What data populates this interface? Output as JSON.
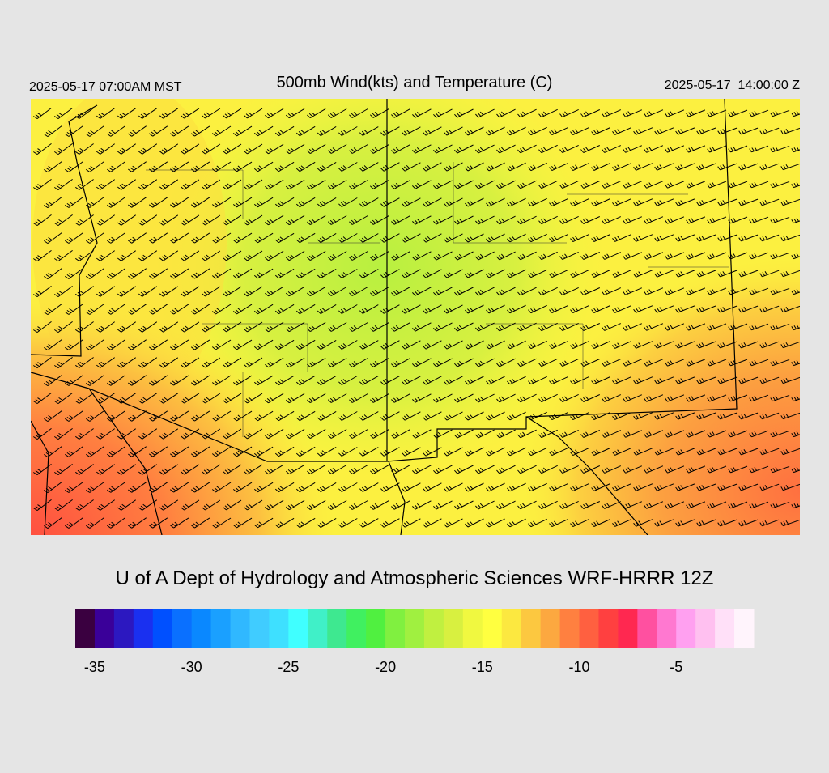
{
  "header": {
    "valid_local": "2025-05-17 07:00AM MST",
    "title": "500mb Wind(kts) and Temperature (C)",
    "valid_utc": "2025-05-17_14:00:00 Z"
  },
  "footer": "U of A Dept of Hydrology and Atmospheric Sciences WRF-HRRR 12Z",
  "colorbar": {
    "lim": [
      -36,
      -1
    ],
    "colors": [
      "#3a0040",
      "#3a0099",
      "#2c18c0",
      "#1a30f0",
      "#0050ff",
      "#0a70ff",
      "#0a88ff",
      "#1aa0ff",
      "#30b8ff",
      "#40ccff",
      "#3ee0ff",
      "#40ffff",
      "#40f0c8",
      "#3ee890",
      "#40f060",
      "#50f040",
      "#80f040",
      "#a0f040",
      "#c0f040",
      "#d8f040",
      "#f0f840",
      "#ffff40",
      "#fce840",
      "#fcc840",
      "#fca840",
      "#ff8040",
      "#ff6040",
      "#ff4040",
      "#ff2850",
      "#ff50a0",
      "#ff78d0",
      "#ffa0f0",
      "#ffc0f0",
      "#ffe0f8",
      "#fff4fc"
    ],
    "ticks": [
      -35,
      -30,
      -25,
      -20,
      -15,
      -10,
      -5
    ]
  }
}
